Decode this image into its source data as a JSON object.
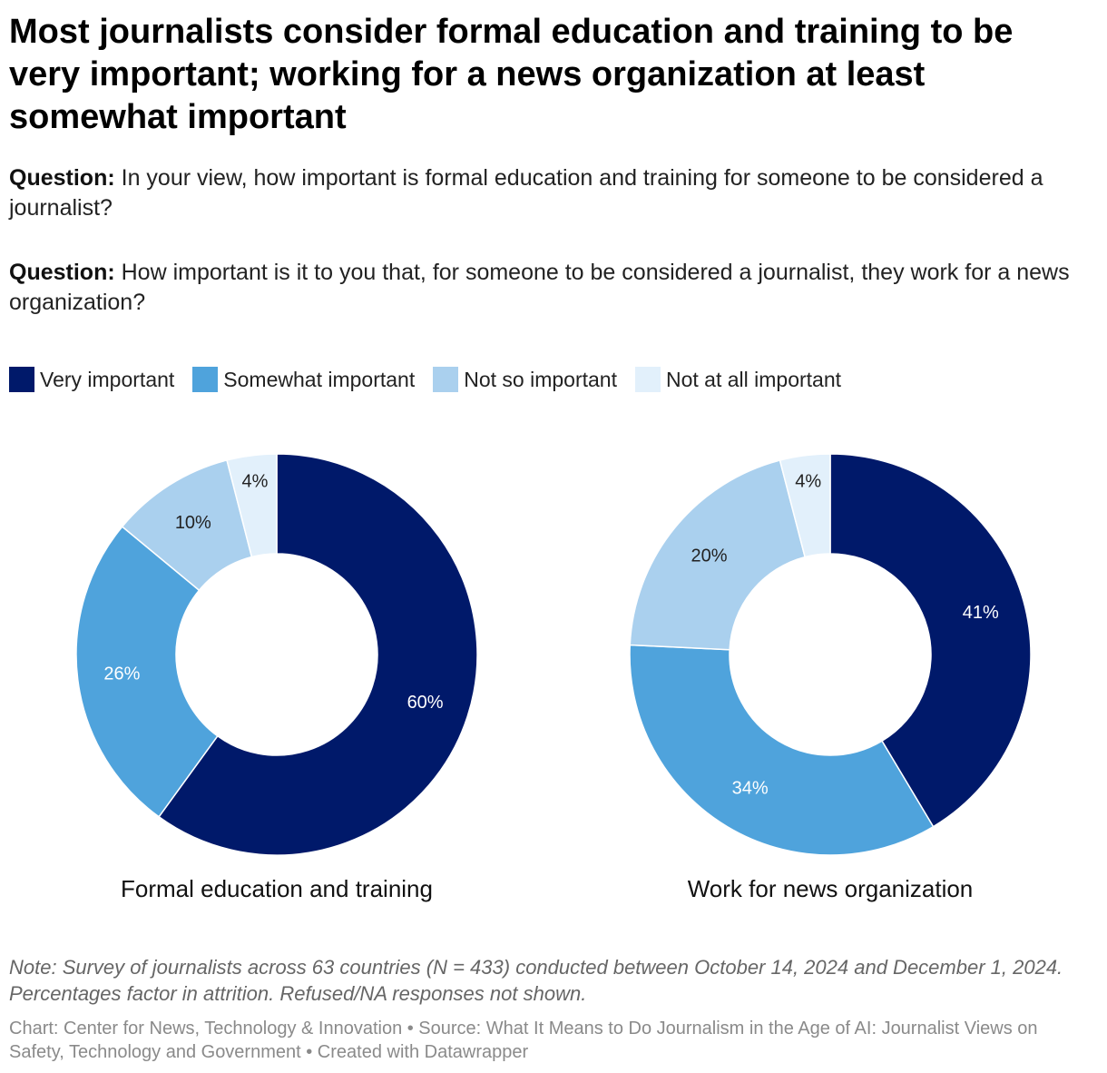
{
  "title": "Most journalists consider formal education and training to be very important; working for a news organization at least somewhat important",
  "questions": [
    {
      "prefix": "Question:",
      "text": "In your view, how important is formal education and training for someone to be considered a journalist?"
    },
    {
      "prefix": "Question:",
      "text": "How important is it to you that, for someone to be considered a journalist, they work for a news organization?"
    }
  ],
  "legend": [
    {
      "label": "Very important",
      "color": "#00196a"
    },
    {
      "label": "Somewhat important",
      "color": "#4fa3dc"
    },
    {
      "label": "Not so important",
      "color": "#aad0ee"
    },
    {
      "label": "Not at all important",
      "color": "#e2f0fb"
    }
  ],
  "chart_data": [
    {
      "type": "pie",
      "donut": true,
      "name": "Formal education and training",
      "categories": [
        "Very important",
        "Somewhat important",
        "Not so important",
        "Not at all important"
      ],
      "values": [
        60,
        26,
        10,
        4
      ],
      "labels": [
        "60%",
        "26%",
        "10%",
        "4%"
      ],
      "colors": [
        "#00196a",
        "#4fa3dc",
        "#aad0ee",
        "#e2f0fb"
      ]
    },
    {
      "type": "pie",
      "donut": true,
      "name": "Work for news organization",
      "categories": [
        "Very important",
        "Somewhat important",
        "Not so important",
        "Not at all important"
      ],
      "values": [
        41,
        34,
        20,
        4
      ],
      "labels": [
        "41%",
        "34%",
        "20%",
        "4%"
      ],
      "colors": [
        "#00196a",
        "#4fa3dc",
        "#aad0ee",
        "#e2f0fb"
      ]
    }
  ],
  "note": "Note: Survey of journalists across 63 countries (N = 433) conducted between October 14, 2024 and December 1, 2024. Percentages factor in attrition. Refused/NA responses not shown.",
  "credit": "Chart: Center for News, Technology & Innovation • Source: What It Means to Do Journalism in the Age of AI: Journalist Views on Safety, Technology and Government • Created with Datawrapper"
}
